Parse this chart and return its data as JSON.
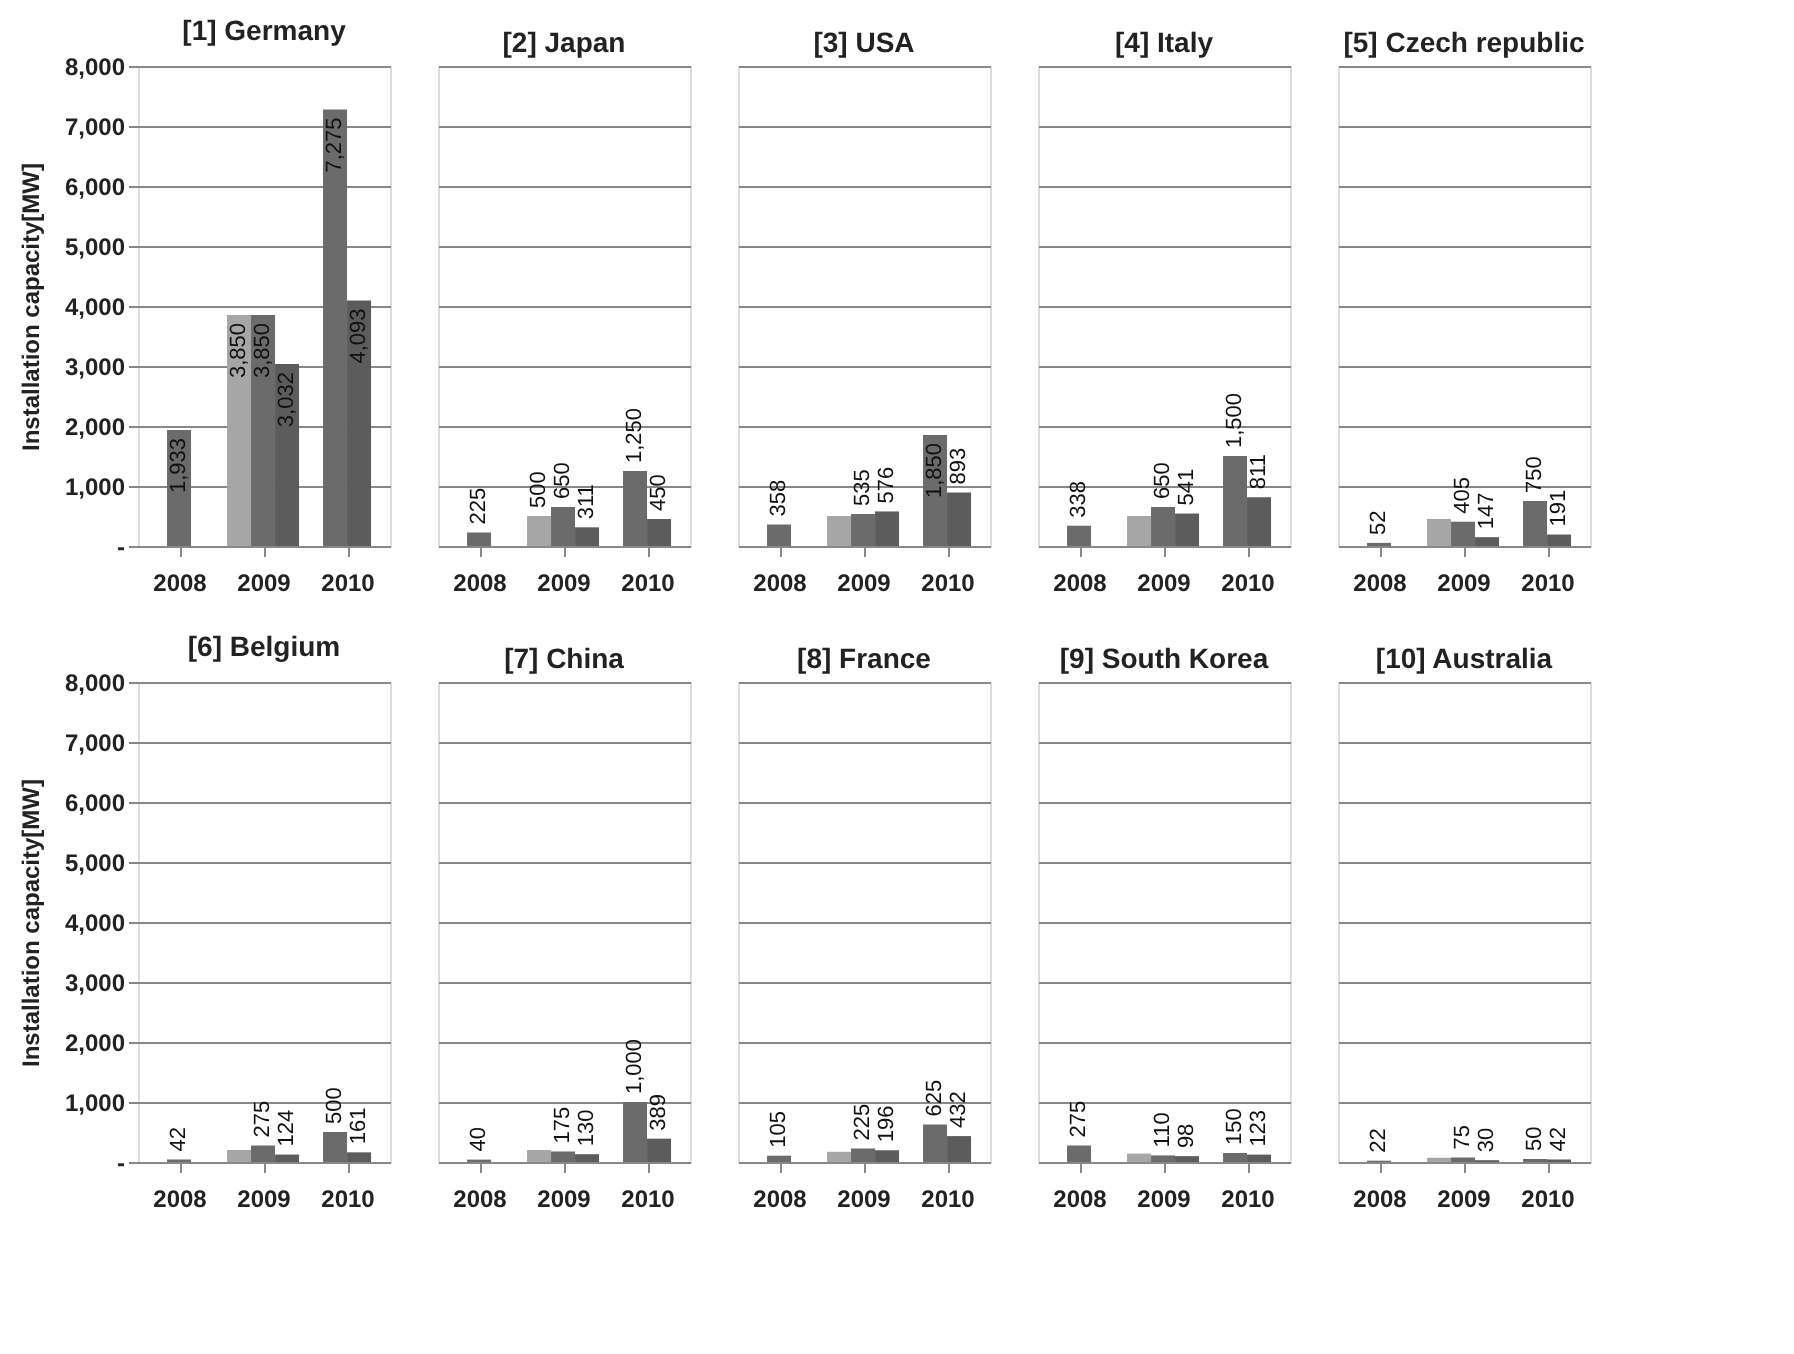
{
  "chart_data": [
    {
      "type": "bar",
      "title": "[1] Germany",
      "ylabel": "Installation capacity[MW]",
      "categories": [
        "2008",
        "2009",
        "2010"
      ],
      "series": [
        {
          "color": "#a6a6a6",
          "values": [
            null,
            3850,
            null
          ],
          "value_labels": [
            null,
            "3,850",
            null
          ]
        },
        {
          "color": "#6b6b6b",
          "values": [
            1933,
            3850,
            7275
          ],
          "value_labels": [
            "1,933",
            "3,850",
            "7,275"
          ]
        },
        {
          "color": "#5c5c5c",
          "values": [
            null,
            3032,
            4093
          ],
          "value_labels": [
            null,
            "3,032",
            "4,093"
          ]
        }
      ],
      "ylim": [
        0,
        8000
      ],
      "yticks": [
        {
          "value": 0,
          "label": "-"
        },
        {
          "value": 1000,
          "label": "1,000"
        },
        {
          "value": 2000,
          "label": "2,000"
        },
        {
          "value": 3000,
          "label": "3,000"
        },
        {
          "value": 4000,
          "label": "4,000"
        },
        {
          "value": 5000,
          "label": "5,000"
        },
        {
          "value": 6000,
          "label": "6,000"
        },
        {
          "value": 7000,
          "label": "7,000"
        },
        {
          "value": 8000,
          "label": "8,000"
        }
      ],
      "grid": "y"
    },
    {
      "type": "bar",
      "title": "[2] Japan",
      "categories": [
        "2008",
        "2009",
        "2010"
      ],
      "series": [
        {
          "color": "#a6a6a6",
          "values": [
            null,
            500,
            null
          ],
          "value_labels": [
            null,
            "500",
            null
          ]
        },
        {
          "color": "#6b6b6b",
          "values": [
            225,
            650,
            1250
          ],
          "value_labels": [
            "225",
            "650",
            "1,250"
          ]
        },
        {
          "color": "#5c5c5c",
          "values": [
            null,
            311,
            450
          ],
          "value_labels": [
            null,
            "311",
            "450"
          ]
        }
      ],
      "ylim": [
        0,
        8000
      ],
      "yticks": [
        0,
        1000,
        2000,
        3000,
        4000,
        5000,
        6000,
        7000,
        8000
      ],
      "grid": "y",
      "tick_labels": "x"
    },
    {
      "type": "bar",
      "title": "[3] USA",
      "categories": [
        "2008",
        "2009",
        "2010"
      ],
      "series": [
        {
          "color": "#a6a6a6",
          "values": [
            null,
            500,
            null
          ],
          "value_labels": [
            null,
            null,
            null
          ]
        },
        {
          "color": "#6b6b6b",
          "values": [
            358,
            535,
            1850
          ],
          "value_labels": [
            "358",
            "535",
            "1,850"
          ]
        },
        {
          "color": "#5c5c5c",
          "values": [
            null,
            576,
            893
          ],
          "value_labels": [
            null,
            "576",
            "893"
          ]
        }
      ],
      "ylim": [
        0,
        8000
      ],
      "yticks": [
        0,
        1000,
        2000,
        3000,
        4000,
        5000,
        6000,
        7000,
        8000
      ],
      "grid": "y",
      "tick_labels": "x"
    },
    {
      "type": "bar",
      "title": "[4] Italy",
      "categories": [
        "2008",
        "2009",
        "2010"
      ],
      "series": [
        {
          "color": "#a6a6a6",
          "values": [
            null,
            500,
            null
          ],
          "value_labels": [
            null,
            null,
            null
          ]
        },
        {
          "color": "#6b6b6b",
          "values": [
            338,
            650,
            1500
          ],
          "value_labels": [
            "338",
            "650",
            "1,500"
          ]
        },
        {
          "color": "#5c5c5c",
          "values": [
            null,
            541,
            811
          ],
          "value_labels": [
            null,
            "541",
            "811"
          ]
        }
      ],
      "ylim": [
        0,
        8000
      ],
      "yticks": [
        0,
        1000,
        2000,
        3000,
        4000,
        5000,
        6000,
        7000,
        8000
      ],
      "grid": "y",
      "tick_labels": "x"
    },
    {
      "type": "bar",
      "title": "[5] Czech republic",
      "categories": [
        "2008",
        "2009",
        "2010"
      ],
      "series": [
        {
          "color": "#a6a6a6",
          "values": [
            null,
            450,
            null
          ],
          "value_labels": [
            null,
            null,
            null
          ]
        },
        {
          "color": "#6b6b6b",
          "values": [
            52,
            405,
            750
          ],
          "value_labels": [
            "52",
            "405",
            "750"
          ]
        },
        {
          "color": "#5c5c5c",
          "values": [
            null,
            147,
            191
          ],
          "value_labels": [
            null,
            "147",
            "191"
          ]
        }
      ],
      "ylim": [
        0,
        8000
      ],
      "yticks": [
        0,
        1000,
        2000,
        3000,
        4000,
        5000,
        6000,
        7000,
        8000
      ],
      "grid": "y",
      "tick_labels": "x"
    },
    {
      "type": "bar",
      "title": "[6] Belgium",
      "ylabel": "Installation capacity[MW]",
      "categories": [
        "2008",
        "2009",
        "2010"
      ],
      "series": [
        {
          "color": "#a6a6a6",
          "values": [
            null,
            200,
            null
          ],
          "value_labels": [
            null,
            null,
            null
          ]
        },
        {
          "color": "#6b6b6b",
          "values": [
            42,
            275,
            500
          ],
          "value_labels": [
            "42",
            "275",
            "500"
          ]
        },
        {
          "color": "#5c5c5c",
          "values": [
            null,
            124,
            161
          ],
          "value_labels": [
            null,
            "124",
            "161"
          ]
        }
      ],
      "ylim": [
        0,
        8000
      ],
      "yticks": [
        {
          "value": 0,
          "label": "-"
        },
        {
          "value": 1000,
          "label": "1,000"
        },
        {
          "value": 2000,
          "label": "2,000"
        },
        {
          "value": 3000,
          "label": "3,000"
        },
        {
          "value": 4000,
          "label": "4,000"
        },
        {
          "value": 5000,
          "label": "5,000"
        },
        {
          "value": 6000,
          "label": "6,000"
        },
        {
          "value": 7000,
          "label": "7,000"
        },
        {
          "value": 8000,
          "label": "8,000"
        }
      ],
      "grid": "y"
    },
    {
      "type": "bar",
      "title": "[7] China",
      "categories": [
        "2008",
        "2009",
        "2010"
      ],
      "series": [
        {
          "color": "#a6a6a6",
          "values": [
            null,
            200,
            null
          ],
          "value_labels": [
            null,
            null,
            null
          ]
        },
        {
          "color": "#6b6b6b",
          "values": [
            40,
            175,
            1000
          ],
          "value_labels": [
            "40",
            "175",
            "1,000"
          ]
        },
        {
          "color": "#5c5c5c",
          "values": [
            null,
            130,
            389
          ],
          "value_labels": [
            null,
            "130",
            "389"
          ]
        }
      ],
      "ylim": [
        0,
        8000
      ],
      "yticks": [
        0,
        1000,
        2000,
        3000,
        4000,
        5000,
        6000,
        7000,
        8000
      ],
      "grid": "y",
      "tick_labels": "x"
    },
    {
      "type": "bar",
      "title": "[8] France",
      "categories": [
        "2008",
        "2009",
        "2010"
      ],
      "series": [
        {
          "color": "#a6a6a6",
          "values": [
            null,
            170,
            null
          ],
          "value_labels": [
            null,
            null,
            null
          ]
        },
        {
          "color": "#6b6b6b",
          "values": [
            105,
            225,
            625
          ],
          "value_labels": [
            "105",
            "225",
            "625"
          ]
        },
        {
          "color": "#5c5c5c",
          "values": [
            null,
            196,
            432
          ],
          "value_labels": [
            null,
            "196",
            "432"
          ]
        }
      ],
      "ylim": [
        0,
        8000
      ],
      "yticks": [
        0,
        1000,
        2000,
        3000,
        4000,
        5000,
        6000,
        7000,
        8000
      ],
      "grid": "y",
      "tick_labels": "x"
    },
    {
      "type": "bar",
      "title": "[9] South Korea",
      "categories": [
        "2008",
        "2009",
        "2010"
      ],
      "series": [
        {
          "color": "#a6a6a6",
          "values": [
            null,
            140,
            null
          ],
          "value_labels": [
            null,
            null,
            null
          ]
        },
        {
          "color": "#6b6b6b",
          "values": [
            275,
            110,
            150
          ],
          "value_labels": [
            "275",
            "110",
            "150"
          ]
        },
        {
          "color": "#5c5c5c",
          "values": [
            null,
            98,
            123
          ],
          "value_labels": [
            null,
            "98",
            "123"
          ]
        }
      ],
      "ylim": [
        0,
        8000
      ],
      "yticks": [
        0,
        1000,
        2000,
        3000,
        4000,
        5000,
        6000,
        7000,
        8000
      ],
      "grid": "y",
      "tick_labels": "x"
    },
    {
      "type": "bar",
      "title": "[10] Australia",
      "categories": [
        "2008",
        "2009",
        "2010"
      ],
      "series": [
        {
          "color": "#a6a6a6",
          "values": [
            null,
            70,
            null
          ],
          "value_labels": [
            null,
            null,
            null
          ]
        },
        {
          "color": "#6b6b6b",
          "values": [
            22,
            75,
            50
          ],
          "value_labels": [
            "22",
            "75",
            "50"
          ]
        },
        {
          "color": "#5c5c5c",
          "values": [
            null,
            30,
            42
          ],
          "value_labels": [
            null,
            "30",
            "42"
          ]
        }
      ],
      "ylim": [
        0,
        8000
      ],
      "yticks": [
        0,
        1000,
        2000,
        3000,
        4000,
        5000,
        6000,
        7000,
        8000
      ],
      "grid": "y",
      "tick_labels": "x"
    }
  ]
}
